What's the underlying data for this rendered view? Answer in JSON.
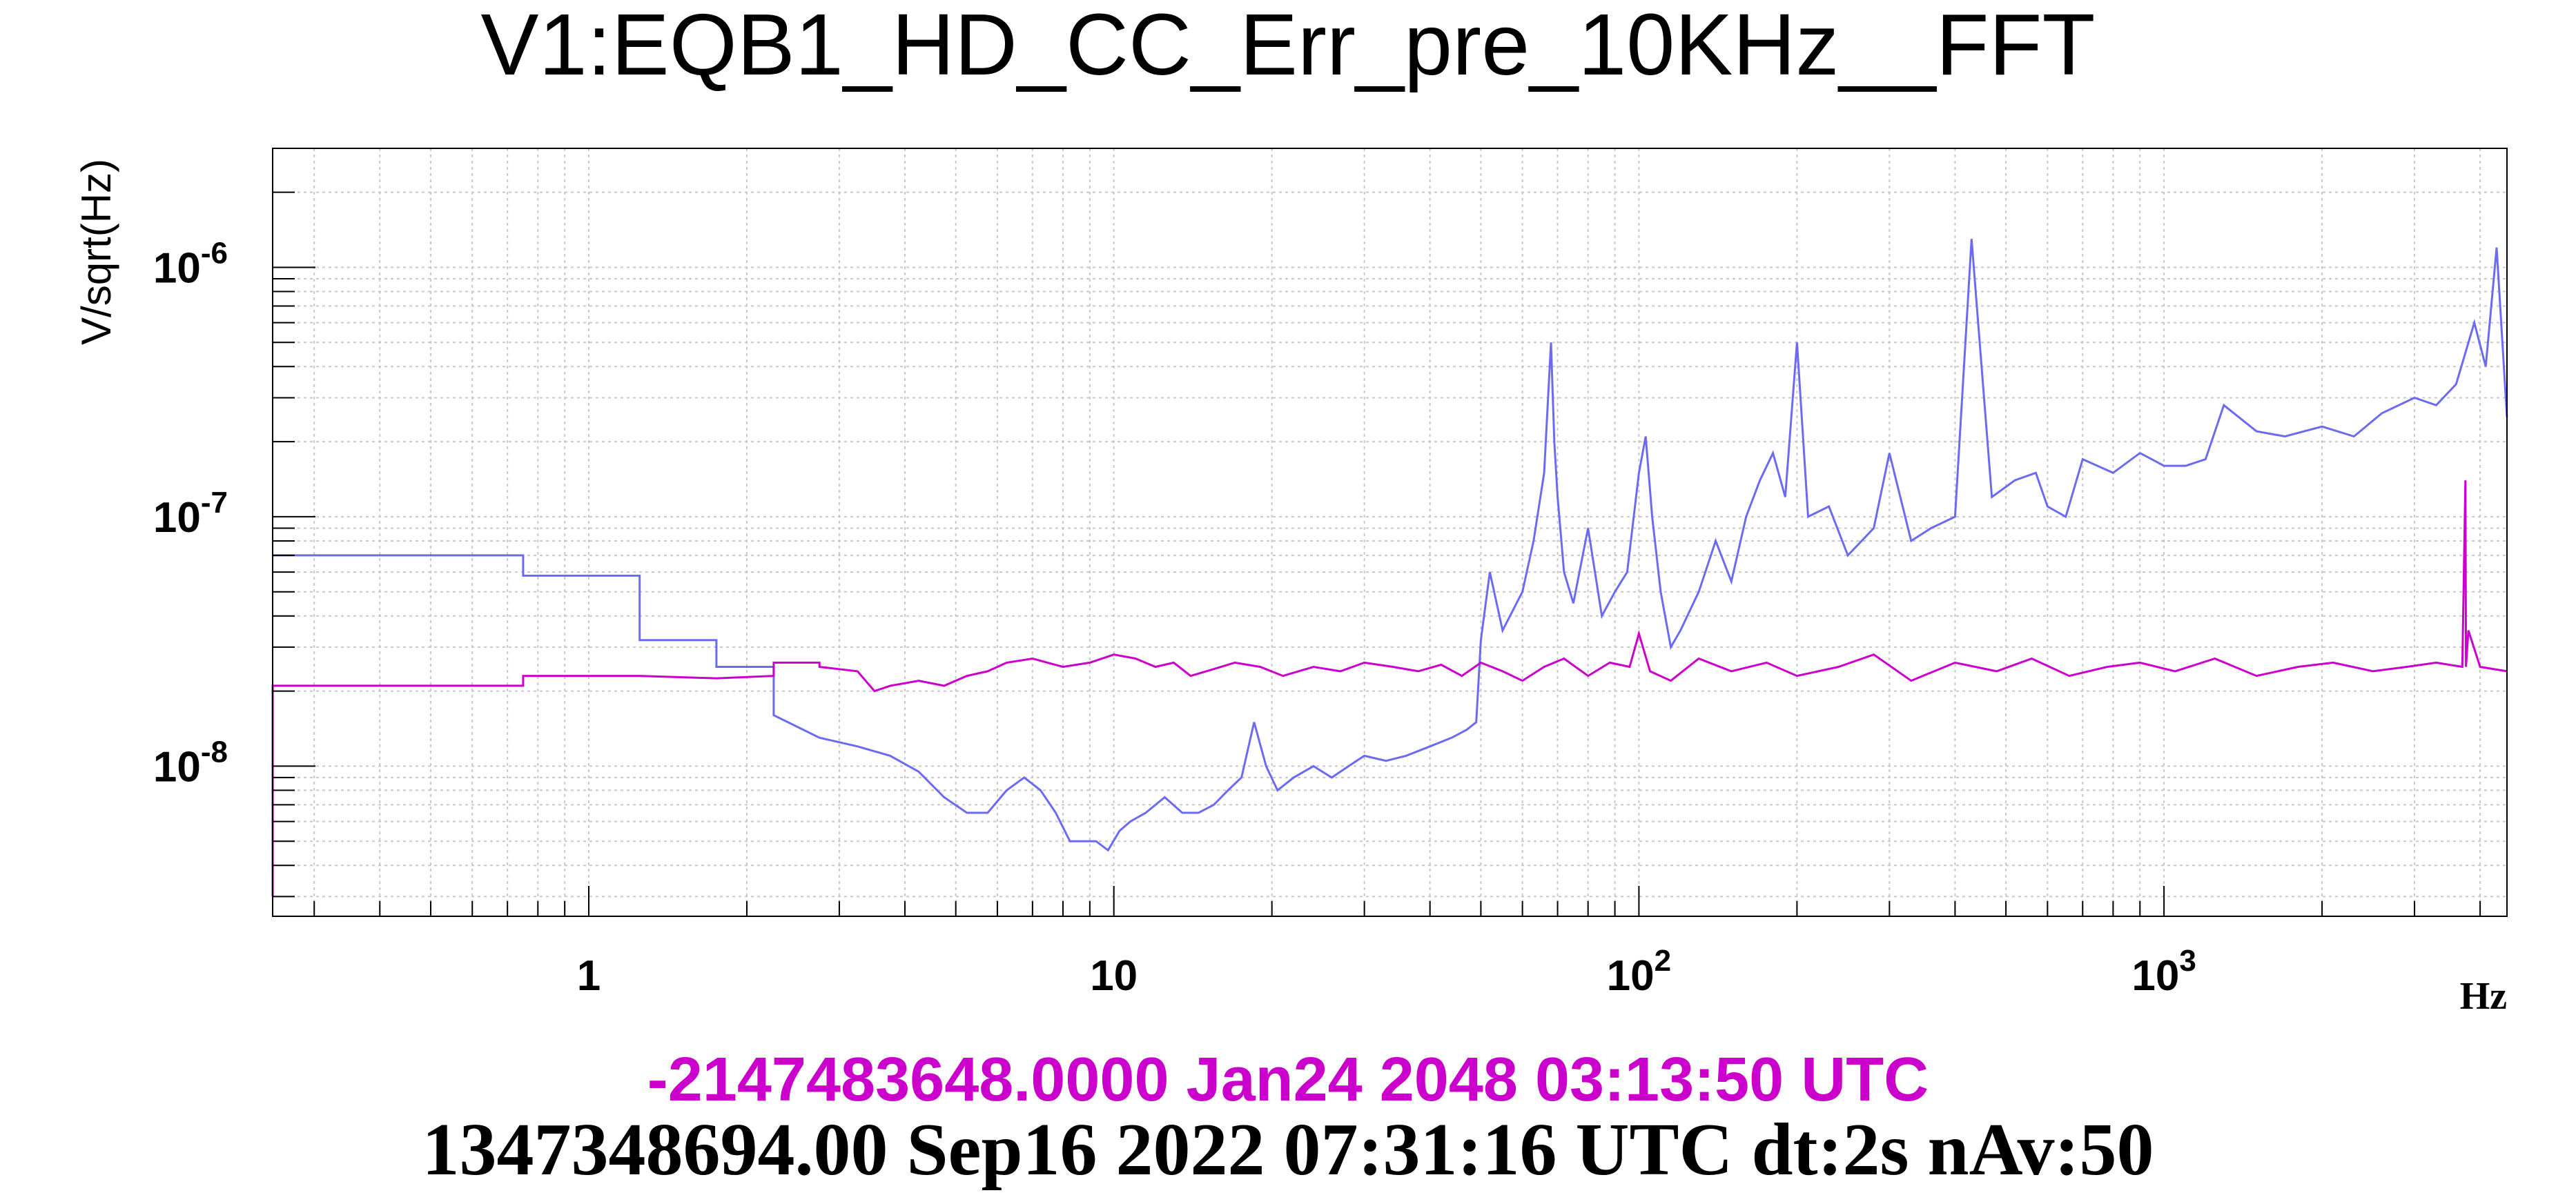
{
  "chart_data": {
    "type": "line",
    "title": "V1:EQB1_HD_CC_Err_pre_10KHz__FFT",
    "xlabel": "Hz",
    "ylabel": "V/sqrt(Hz)",
    "x_scale": "log",
    "y_scale": "log",
    "xlim": [
      0.25,
      4500
    ],
    "ylim": [
      2.5e-09,
      3e-06
    ],
    "grid": true,
    "x_ticks": [
      {
        "value": 1,
        "label": "1"
      },
      {
        "value": 10,
        "label": "10"
      },
      {
        "value": 100,
        "label": "10",
        "sup": "2"
      },
      {
        "value": 1000,
        "label": "10",
        "sup": "3"
      }
    ],
    "y_ticks": [
      {
        "value": 1e-08,
        "label": "10",
        "sup": "-8"
      },
      {
        "value": 1e-07,
        "label": "10",
        "sup": "-7"
      },
      {
        "value": 1e-06,
        "label": "10",
        "sup": "-6"
      }
    ],
    "series": [
      {
        "color": "#6b6bf2",
        "x": [
          0.25,
          0.75,
          0.75,
          1.25,
          1.25,
          1.75,
          1.75,
          2.25,
          2.25,
          2.75,
          3.25,
          3.75,
          4.25,
          4.75,
          5.25,
          5.75,
          6.25,
          6.75,
          7.25,
          7.75,
          8.25,
          8.75,
          9.25,
          9.75,
          10.25,
          10.75,
          11.5,
          12.5,
          13.5,
          14.5,
          15.5,
          16.5,
          17.5,
          18.5,
          19.5,
          20.5,
          22,
          24,
          26,
          28,
          30,
          33,
          36,
          40,
          44,
          47,
          49,
          50,
          52,
          55,
          60,
          63,
          66,
          68,
          69,
          70,
          72,
          75,
          80,
          85,
          90,
          95,
          100,
          103,
          106,
          110,
          115,
          120,
          130,
          140,
          150,
          160,
          170,
          180,
          190,
          200,
          210,
          230,
          250,
          280,
          300,
          330,
          360,
          400,
          430,
          470,
          520,
          570,
          600,
          650,
          700,
          800,
          900,
          1000,
          1100,
          1200,
          1300,
          1500,
          1700,
          2000,
          2300,
          2600,
          3000,
          3300,
          3600,
          3900,
          4100,
          4300,
          4500
        ],
        "y": [
          7e-08,
          7e-08,
          5.8e-08,
          5.8e-08,
          3.2e-08,
          3.2e-08,
          2.5e-08,
          2.5e-08,
          1.6e-08,
          1.3e-08,
          1.2e-08,
          1.1e-08,
          9.5e-09,
          7.5e-09,
          6.5e-09,
          6.5e-09,
          8e-09,
          9e-09,
          8e-09,
          6.5e-09,
          5e-09,
          5e-09,
          5e-09,
          4.6e-09,
          5.5e-09,
          6e-09,
          6.5e-09,
          7.5e-09,
          6.5e-09,
          6.5e-09,
          7e-09,
          8e-09,
          9e-09,
          1.5e-08,
          1e-08,
          8e-09,
          9e-09,
          1e-08,
          9e-09,
          1e-08,
          1.1e-08,
          1.05e-08,
          1.1e-08,
          1.2e-08,
          1.3e-08,
          1.4e-08,
          1.5e-08,
          3.2e-08,
          6e-08,
          3.5e-08,
          5e-08,
          8e-08,
          1.5e-07,
          5e-07,
          2e-07,
          1.2e-07,
          6e-08,
          4.5e-08,
          9e-08,
          4e-08,
          5e-08,
          6e-08,
          1.5e-07,
          2.1e-07,
          1e-07,
          5e-08,
          3e-08,
          3.5e-08,
          5e-08,
          8e-08,
          5.5e-08,
          1e-07,
          1.4e-07,
          1.8e-07,
          1.2e-07,
          5e-07,
          1e-07,
          1.1e-07,
          7e-08,
          9e-08,
          1.8e-07,
          8e-08,
          9e-08,
          1e-07,
          1.3e-06,
          1.2e-07,
          1.4e-07,
          1.5e-07,
          1.1e-07,
          1e-07,
          1.7e-07,
          1.5e-07,
          1.8e-07,
          1.6e-07,
          1.6e-07,
          1.7e-07,
          2.8e-07,
          2.2e-07,
          2.1e-07,
          2.3e-07,
          2.1e-07,
          2.6e-07,
          3e-07,
          2.8e-07,
          3.4e-07,
          6e-07,
          4e-07,
          1.2e-06,
          2.5e-07
        ]
      },
      {
        "color": "#cc00cc",
        "x": [
          0.25,
          0.25,
          0.75,
          0.75,
          1.25,
          1.75,
          2.25,
          2.25,
          2.75,
          2.75,
          3.25,
          3.5,
          3.75,
          4.25,
          4.75,
          5.25,
          5.75,
          6.25,
          7,
          8,
          9,
          10,
          11,
          12,
          13,
          14,
          15,
          17,
          19,
          21,
          24,
          27,
          30,
          34,
          38,
          42,
          46,
          50,
          55,
          60,
          66,
          72,
          80,
          88,
          96,
          100,
          105,
          115,
          130,
          150,
          175,
          200,
          240,
          280,
          330,
          400,
          480,
          560,
          660,
          780,
          900,
          1050,
          1250,
          1500,
          1800,
          2100,
          2500,
          2900,
          3300,
          3700,
          3750,
          3760,
          3800,
          4000,
          4500
        ],
        "y": [
          3e-09,
          2.1e-08,
          2.1e-08,
          2.3e-08,
          2.3e-08,
          2.25e-08,
          2.3e-08,
          2.6e-08,
          2.6e-08,
          2.5e-08,
          2.4e-08,
          2e-08,
          2.1e-08,
          2.2e-08,
          2.1e-08,
          2.3e-08,
          2.4e-08,
          2.6e-08,
          2.7e-08,
          2.5e-08,
          2.6e-08,
          2.8e-08,
          2.7e-08,
          2.5e-08,
          2.6e-08,
          2.3e-08,
          2.4e-08,
          2.6e-08,
          2.5e-08,
          2.3e-08,
          2.5e-08,
          2.4e-08,
          2.6e-08,
          2.5e-08,
          2.4e-08,
          2.55e-08,
          2.3e-08,
          2.6e-08,
          2.4e-08,
          2.2e-08,
          2.5e-08,
          2.7e-08,
          2.3e-08,
          2.6e-08,
          2.5e-08,
          3.4e-08,
          2.4e-08,
          2.2e-08,
          2.7e-08,
          2.4e-08,
          2.6e-08,
          2.3e-08,
          2.5e-08,
          2.8e-08,
          2.2e-08,
          2.6e-08,
          2.4e-08,
          2.7e-08,
          2.3e-08,
          2.5e-08,
          2.6e-08,
          2.4e-08,
          2.7e-08,
          2.3e-08,
          2.5e-08,
          2.6e-08,
          2.4e-08,
          2.5e-08,
          2.6e-08,
          2.5e-08,
          1.4e-07,
          2.5e-08,
          3.5e-08,
          2.5e-08,
          2.4e-08
        ]
      }
    ]
  },
  "footer": {
    "reference_time": "-2147483648.0000 Jan24 2048 03:13:50 UTC",
    "reference_color": "#cc00cc",
    "current_time": "1347348694.00 Sep16 2022 07:31:16 UTC dt:2s nAv:50",
    "current_color": "#000000"
  }
}
